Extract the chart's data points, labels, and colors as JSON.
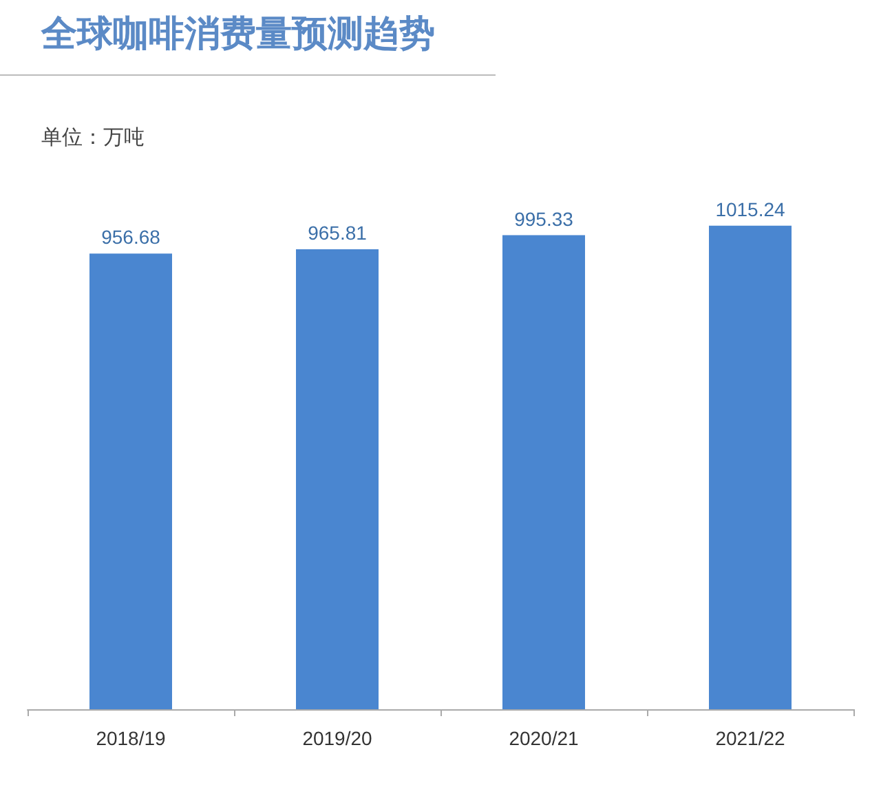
{
  "chart_data": {
    "type": "bar",
    "title": "全球咖啡消费量预测趋势",
    "ylabel": "单位：万吨",
    "categories": [
      "2018/19",
      "2019/20",
      "2020/21",
      "2021/22"
    ],
    "values": [
      956.68,
      965.81,
      995.33,
      1015.24
    ],
    "color": "#4a86d0",
    "tick_labels": "x",
    "data_labels": true,
    "grid": false
  }
}
